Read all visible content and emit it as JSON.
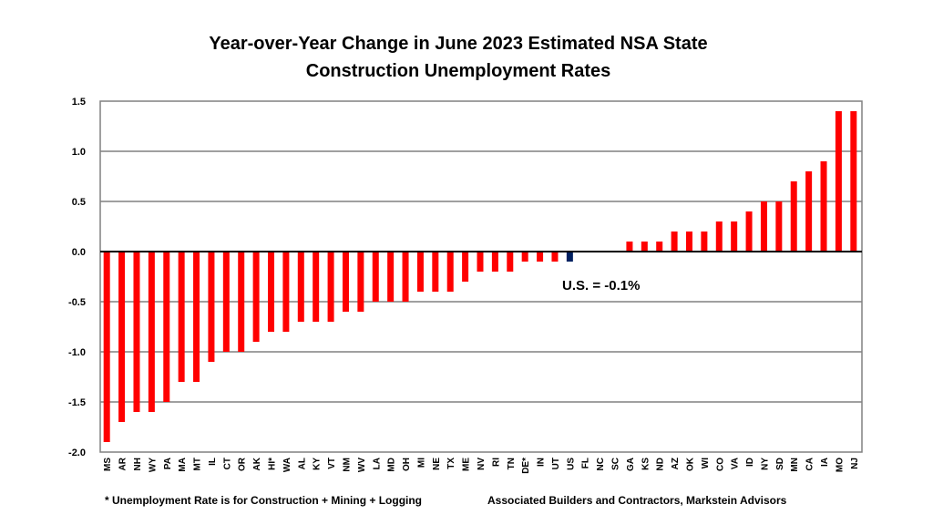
{
  "chart_data": {
    "type": "bar",
    "title_lines": [
      "Year-over-Year Change in June 2023 Estimated NSA State",
      "Construction Unemployment Rates"
    ],
    "xlabel": "",
    "ylabel": "",
    "ylim": [
      -2.0,
      1.5
    ],
    "yticks": [
      -2.0,
      -1.5,
      -1.0,
      -0.5,
      0.0,
      0.5,
      1.0,
      1.5
    ],
    "ytick_labels": [
      "-2.0",
      "-1.5",
      "-1.0",
      "-0.5",
      "0.0",
      "0.5",
      "1.0",
      "1.5"
    ],
    "grid": true,
    "categories": [
      "MS",
      "AR",
      "NH",
      "WY",
      "PA",
      "MA",
      "MT",
      "IL",
      "CT",
      "OR",
      "AK",
      "HI*",
      "WA",
      "AL",
      "KY",
      "VT",
      "NM",
      "WV",
      "LA",
      "MD",
      "OH",
      "MI",
      "NE",
      "TX",
      "ME",
      "NV",
      "RI",
      "TN",
      "DE*",
      "IN",
      "UT",
      "US",
      "FL",
      "NC",
      "SC",
      "GA",
      "KS",
      "ND",
      "AZ",
      "OK",
      "WI",
      "CO",
      "VA",
      "ID",
      "NY",
      "SD",
      "MN",
      "CA",
      "IA",
      "MO",
      "NJ"
    ],
    "values": [
      -1.9,
      -1.7,
      -1.6,
      -1.6,
      -1.5,
      -1.3,
      -1.3,
      -1.1,
      -1.0,
      -1.0,
      -0.9,
      -0.8,
      -0.8,
      -0.7,
      -0.7,
      -0.7,
      -0.6,
      -0.6,
      -0.5,
      -0.5,
      -0.5,
      -0.4,
      -0.4,
      -0.4,
      -0.3,
      -0.2,
      -0.2,
      -0.2,
      -0.1,
      -0.1,
      -0.1,
      -0.1,
      0.0,
      0.0,
      0.0,
      0.1,
      0.1,
      0.1,
      0.2,
      0.2,
      0.2,
      0.3,
      0.3,
      0.4,
      0.5,
      0.5,
      0.7,
      0.8,
      0.9,
      1.4,
      1.4
    ],
    "colors": {
      "state": "#ff0000",
      "us": "#002060"
    },
    "highlight_category": "US",
    "annotation": "U.S. = -0.1%",
    "footnote_left": "* Unemployment Rate is for Construction + Mining + Logging",
    "footnote_right": "Associated Builders and Contractors, Markstein Advisors"
  }
}
